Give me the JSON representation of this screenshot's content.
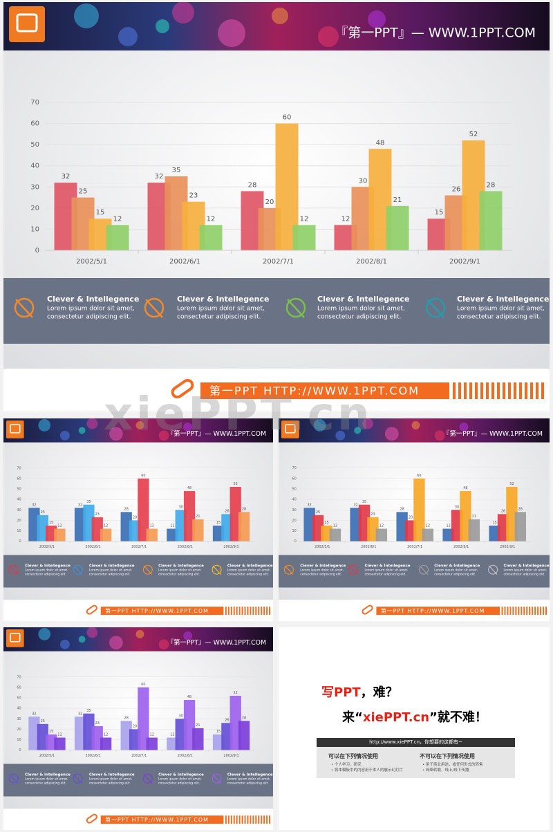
{
  "chart_data": [
    {
      "type": "bar",
      "categories": [
        "2002/5/1",
        "2002/6/1",
        "2002/7/1",
        "2002/8/1",
        "2002/9/1"
      ],
      "series": [
        {
          "color": "#e05766",
          "values": [
            32,
            32,
            28,
            12,
            15
          ]
        },
        {
          "color": "#e8905a",
          "values": [
            25,
            35,
            20,
            30,
            26
          ]
        },
        {
          "color": "#f6b03e",
          "values": [
            15,
            23,
            60,
            48,
            52
          ]
        },
        {
          "color": "#8fd06a",
          "values": [
            12,
            12,
            12,
            21,
            28
          ]
        }
      ],
      "ylim": [
        0,
        70
      ],
      "yticks": [
        0,
        10,
        20,
        30,
        40,
        50,
        60,
        70
      ],
      "grid": true
    },
    {
      "type": "bar",
      "categories": [
        "2002/5/1",
        "2002/6/1",
        "2002/7/1",
        "2002/8/1",
        "2002/9/1"
      ],
      "series": [
        {
          "color": "#3c6fb5",
          "values": [
            32,
            32,
            28,
            12,
            15
          ]
        },
        {
          "color": "#42abe9",
          "values": [
            25,
            35,
            20,
            30,
            26
          ]
        },
        {
          "color": "#e5404e",
          "values": [
            15,
            23,
            60,
            48,
            52
          ]
        },
        {
          "color": "#f59a52",
          "values": [
            12,
            12,
            12,
            21,
            28
          ]
        }
      ],
      "ylim": [
        0,
        70
      ],
      "yticks": [
        0,
        10,
        20,
        30,
        40,
        50,
        60,
        70
      ],
      "grid": true
    },
    {
      "type": "bar",
      "categories": [
        "2002/5/1",
        "2002/6/1",
        "2002/7/1",
        "2002/8/1",
        "2002/9/1"
      ],
      "series": [
        {
          "color": "#3c6fb5",
          "values": [
            32,
            32,
            28,
            12,
            15
          ]
        },
        {
          "color": "#e23a48",
          "values": [
            25,
            35,
            20,
            30,
            26
          ]
        },
        {
          "color": "#f6a828",
          "values": [
            15,
            23,
            60,
            48,
            52
          ]
        },
        {
          "color": "#9b9b9b",
          "values": [
            12,
            12,
            12,
            21,
            28
          ]
        }
      ],
      "ylim": [
        0,
        70
      ],
      "yticks": [
        0,
        10,
        20,
        30,
        40,
        50,
        60,
        70
      ],
      "grid": true
    },
    {
      "type": "bar",
      "categories": [
        "2002/5/1",
        "2002/6/1",
        "2002/7/1",
        "2002/8/1",
        "2002/9/1"
      ],
      "series": [
        {
          "color": "#a9a2ec",
          "values": [
            32,
            32,
            28,
            12,
            15
          ]
        },
        {
          "color": "#6650d6",
          "values": [
            25,
            35,
            20,
            30,
            26
          ]
        },
        {
          "color": "#9d62ee",
          "values": [
            15,
            23,
            60,
            48,
            52
          ]
        },
        {
          "color": "#7d3fda",
          "values": [
            12,
            12,
            12,
            21,
            28
          ]
        }
      ],
      "ylim": [
        0,
        70
      ],
      "yticks": [
        0,
        10,
        20,
        30,
        40,
        50,
        60,
        70
      ],
      "grid": true
    }
  ],
  "slides": [
    {
      "header": "『第一PPT』— WWW.1PPT.COM",
      "features": [
        {
          "title": "Clever & Intellegence",
          "line1": "Lorem ipsum dolor sit amet,",
          "line2": "consectetur adipiscing elit."
        },
        {
          "title": "Clever & Intellegence",
          "line1": "Lorem ipsum dolor sit amet,",
          "line2": "consectetur adipiscing elit."
        },
        {
          "title": "Clever & Intellegence",
          "line1": "Lorem ipsum dolor sit amet,",
          "line2": "consectetur adipiscing elit."
        },
        {
          "title": "Clever & Intellegence",
          "line1": "Lorem ipsum dolor sit amet,",
          "line2": "consectetur adipiscing elit."
        }
      ],
      "footer": "第一PPT HTTP://WWW.1PPT.COM"
    },
    {
      "header": "『第一PPT』— WWW.1PPT.COM",
      "features": [
        {
          "title": "Clever & Intellegence",
          "line1": "Lorem ipsum dolor sit amet,",
          "line2": "consectetur adipiscing elit."
        },
        {
          "title": "Clever & Intellegence",
          "line1": "Lorem ipsum dolor sit amet,",
          "line2": "consectetur adipiscing elit."
        },
        {
          "title": "Clever & Intellegence",
          "line1": "Lorem ipsum dolor sit amet,",
          "line2": "consectetur adipiscing elit."
        },
        {
          "title": "Clever & Intellegence",
          "line1": "Lorem ipsum dolor sit amet,",
          "line2": "consectetur adipiscing elit."
        }
      ],
      "footer": "第一PPT HTTP://WWW.1PPT.COM"
    },
    {
      "header": "『第一PPT』— WWW.1PPT.COM",
      "features": [
        {
          "title": "Clever & Intellegence",
          "line1": "Lorem ipsum dolor sit amet,",
          "line2": "consectetur adipiscing elit."
        },
        {
          "title": "Clever & Intellegence",
          "line1": "Lorem ipsum dolor sit amet,",
          "line2": "consectetur adipiscing elit."
        },
        {
          "title": "Clever & Intellegence",
          "line1": "Lorem ipsum dolor sit amet,",
          "line2": "consectetur adipiscing elit."
        },
        {
          "title": "Clever & Intellegence",
          "line1": "Lorem ipsum dolor sit amet,",
          "line2": "consectetur adipiscing elit."
        }
      ],
      "footer": "第一PPT HTTP://WWW.1PPT.COM"
    },
    {
      "header": "『第一PPT』— WWW.1PPT.COM",
      "features": [
        {
          "title": "Clever & Intellegence",
          "line1": "Lorem ipsum dolor sit amet,",
          "line2": "consectetur adipiscing elit."
        },
        {
          "title": "Clever & Intellegence",
          "line1": "Lorem ipsum dolor sit amet,",
          "line2": "consectetur adipiscing elit."
        },
        {
          "title": "Clever & Intellegence",
          "line1": "Lorem ipsum dolor sit amet,",
          "line2": "consectetur adipiscing elit."
        },
        {
          "title": "Clever & Intellegence",
          "line1": "Lorem ipsum dolor sit amet,",
          "line2": "consectetur adipiscing elit."
        }
      ],
      "footer": "第一PPT HTTP://WWW.1PPT.COM"
    }
  ],
  "promo": {
    "line1a": "写PPT",
    "line1b": "，难？",
    "line2a": "来“",
    "line2b": "xiePPT.cn",
    "line2c": "”就不难！",
    "bar": "http://www.xiePPT.cn，你想要的这都有~",
    "can_title": "可以在下列情况使用",
    "can": [
      "个人学习、研究",
      "将本模板中的内容用于本人的展示幻灯片"
    ],
    "cannot_title": "不可以在下列情况使用",
    "cannot": [
      "用于商业用途，或任何形式的转售",
      "网络转载、线上/线下传播"
    ]
  },
  "watermark": "xiePPT.cn"
}
